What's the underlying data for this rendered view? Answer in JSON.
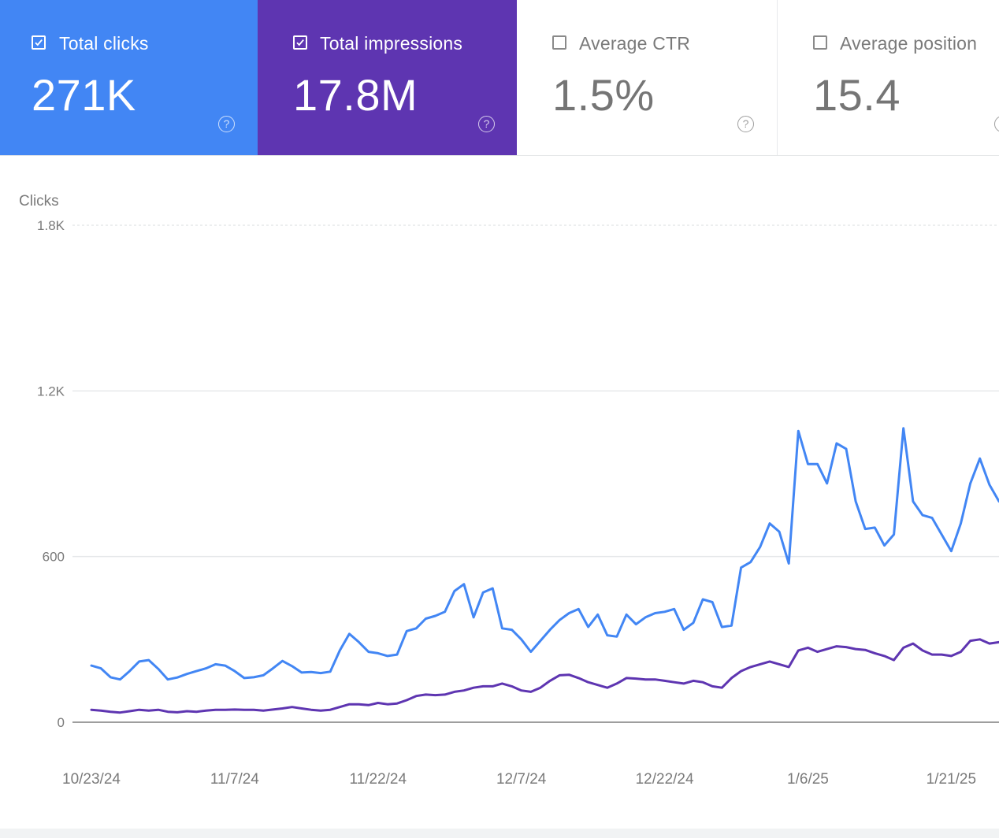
{
  "metrics": [
    {
      "label": "Total clicks",
      "value": "271K",
      "checked": true,
      "color": "#4286f4"
    },
    {
      "label": "Total impressions",
      "value": "17.8M",
      "checked": true,
      "color": "#5e35b1"
    },
    {
      "label": "Average CTR",
      "value": "1.5%",
      "checked": false
    },
    {
      "label": "Average position",
      "value": "15.4",
      "checked": false
    }
  ],
  "help_glyph": "?",
  "chart_data": {
    "type": "line",
    "ylabel": "Clicks",
    "ylim": [
      0,
      1800
    ],
    "yticks": [
      {
        "value": 0,
        "label": "0"
      },
      {
        "value": 600,
        "label": "600"
      },
      {
        "value": 1200,
        "label": "1.2K"
      },
      {
        "value": 1800,
        "label": "1.8K"
      }
    ],
    "x_start": "2024-10-23",
    "x_end": "2025-01-26",
    "xticks": [
      {
        "date": "2024-10-23",
        "label": "10/23/24"
      },
      {
        "date": "2024-11-07",
        "label": "11/7/24"
      },
      {
        "date": "2024-11-22",
        "label": "11/22/24"
      },
      {
        "date": "2024-12-07",
        "label": "12/7/24"
      },
      {
        "date": "2024-12-22",
        "label": "12/22/24"
      },
      {
        "date": "2025-01-06",
        "label": "1/6/25"
      },
      {
        "date": "2025-01-21",
        "label": "1/21/25"
      }
    ],
    "grid": true,
    "series": [
      {
        "color": "#4286f4",
        "points": [
          [
            "2024-10-23",
            205
          ],
          [
            "2024-10-24",
            195
          ],
          [
            "2024-10-25",
            163
          ],
          [
            "2024-10-26",
            155
          ],
          [
            "2024-10-27",
            185
          ],
          [
            "2024-10-28",
            220
          ],
          [
            "2024-10-29",
            225
          ],
          [
            "2024-10-30",
            193
          ],
          [
            "2024-10-31",
            155
          ],
          [
            "2024-11-01",
            162
          ],
          [
            "2024-11-02",
            175
          ],
          [
            "2024-11-03",
            185
          ],
          [
            "2024-11-04",
            195
          ],
          [
            "2024-11-05",
            210
          ],
          [
            "2024-11-06",
            205
          ],
          [
            "2024-11-07",
            185
          ],
          [
            "2024-11-08",
            160
          ],
          [
            "2024-11-09",
            163
          ],
          [
            "2024-11-10",
            170
          ],
          [
            "2024-11-11",
            195
          ],
          [
            "2024-11-12",
            222
          ],
          [
            "2024-11-13",
            203
          ],
          [
            "2024-11-14",
            180
          ],
          [
            "2024-11-15",
            182
          ],
          [
            "2024-11-16",
            178
          ],
          [
            "2024-11-17",
            183
          ],
          [
            "2024-11-18",
            260
          ],
          [
            "2024-11-19",
            320
          ],
          [
            "2024-11-20",
            290
          ],
          [
            "2024-11-21",
            255
          ],
          [
            "2024-11-22",
            250
          ],
          [
            "2024-11-23",
            240
          ],
          [
            "2024-11-24",
            245
          ],
          [
            "2024-11-25",
            330
          ],
          [
            "2024-11-26",
            340
          ],
          [
            "2024-11-27",
            375
          ],
          [
            "2024-11-28",
            385
          ],
          [
            "2024-11-29",
            400
          ],
          [
            "2024-11-30",
            475
          ],
          [
            "2024-12-01",
            500
          ],
          [
            "2024-12-02",
            380
          ],
          [
            "2024-12-03",
            470
          ],
          [
            "2024-12-04",
            485
          ],
          [
            "2024-12-05",
            340
          ],
          [
            "2024-12-06",
            335
          ],
          [
            "2024-12-07",
            300
          ],
          [
            "2024-12-08",
            255
          ],
          [
            "2024-12-09",
            295
          ],
          [
            "2024-12-10",
            335
          ],
          [
            "2024-12-11",
            370
          ],
          [
            "2024-12-12",
            395
          ],
          [
            "2024-12-13",
            410
          ],
          [
            "2024-12-14",
            345
          ],
          [
            "2024-12-15",
            390
          ],
          [
            "2024-12-16",
            315
          ],
          [
            "2024-12-17",
            310
          ],
          [
            "2024-12-18",
            390
          ],
          [
            "2024-12-19",
            355
          ],
          [
            "2024-12-20",
            380
          ],
          [
            "2024-12-21",
            395
          ],
          [
            "2024-12-22",
            400
          ],
          [
            "2024-12-23",
            410
          ],
          [
            "2024-12-24",
            335
          ],
          [
            "2024-12-25",
            360
          ],
          [
            "2024-12-26",
            445
          ],
          [
            "2024-12-27",
            435
          ],
          [
            "2024-12-28",
            345
          ],
          [
            "2024-12-29",
            350
          ],
          [
            "2024-12-30",
            560
          ],
          [
            "2024-12-31",
            580
          ],
          [
            "2025-01-01",
            635
          ],
          [
            "2025-01-02",
            720
          ],
          [
            "2025-01-03",
            690
          ],
          [
            "2025-01-04",
            575
          ],
          [
            "2025-01-05",
            1055
          ],
          [
            "2025-01-06",
            935
          ],
          [
            "2025-01-07",
            935
          ],
          [
            "2025-01-08",
            865
          ],
          [
            "2025-01-09",
            1010
          ],
          [
            "2025-01-10",
            990
          ],
          [
            "2025-01-11",
            800
          ],
          [
            "2025-01-12",
            700
          ],
          [
            "2025-01-13",
            705
          ],
          [
            "2025-01-14",
            640
          ],
          [
            "2025-01-15",
            680
          ],
          [
            "2025-01-16",
            1065
          ],
          [
            "2025-01-17",
            800
          ],
          [
            "2025-01-18",
            750
          ],
          [
            "2025-01-19",
            740
          ],
          [
            "2025-01-20",
            680
          ],
          [
            "2025-01-21",
            620
          ],
          [
            "2025-01-22",
            720
          ],
          [
            "2025-01-23",
            865
          ],
          [
            "2025-01-24",
            955
          ],
          [
            "2025-01-25",
            860
          ],
          [
            "2025-01-26",
            800
          ]
        ]
      },
      {
        "color": "#5e35b1",
        "points": [
          [
            "2024-10-23",
            45
          ],
          [
            "2024-10-24",
            42
          ],
          [
            "2024-10-25",
            38
          ],
          [
            "2024-10-26",
            35
          ],
          [
            "2024-10-27",
            40
          ],
          [
            "2024-10-28",
            45
          ],
          [
            "2024-10-29",
            42
          ],
          [
            "2024-10-30",
            45
          ],
          [
            "2024-10-31",
            38
          ],
          [
            "2024-11-01",
            36
          ],
          [
            "2024-11-02",
            40
          ],
          [
            "2024-11-03",
            38
          ],
          [
            "2024-11-04",
            42
          ],
          [
            "2024-11-05",
            45
          ],
          [
            "2024-11-06",
            45
          ],
          [
            "2024-11-07",
            46
          ],
          [
            "2024-11-08",
            45
          ],
          [
            "2024-11-09",
            45
          ],
          [
            "2024-11-10",
            42
          ],
          [
            "2024-11-11",
            46
          ],
          [
            "2024-11-12",
            50
          ],
          [
            "2024-11-13",
            55
          ],
          [
            "2024-11-14",
            50
          ],
          [
            "2024-11-15",
            45
          ],
          [
            "2024-11-16",
            42
          ],
          [
            "2024-11-17",
            45
          ],
          [
            "2024-11-18",
            55
          ],
          [
            "2024-11-19",
            65
          ],
          [
            "2024-11-20",
            65
          ],
          [
            "2024-11-21",
            62
          ],
          [
            "2024-11-22",
            70
          ],
          [
            "2024-11-23",
            65
          ],
          [
            "2024-11-24",
            68
          ],
          [
            "2024-11-25",
            80
          ],
          [
            "2024-11-26",
            95
          ],
          [
            "2024-11-27",
            100
          ],
          [
            "2024-11-28",
            98
          ],
          [
            "2024-11-29",
            100
          ],
          [
            "2024-11-30",
            110
          ],
          [
            "2024-12-01",
            115
          ],
          [
            "2024-12-02",
            125
          ],
          [
            "2024-12-03",
            130
          ],
          [
            "2024-12-04",
            130
          ],
          [
            "2024-12-05",
            140
          ],
          [
            "2024-12-06",
            130
          ],
          [
            "2024-12-07",
            115
          ],
          [
            "2024-12-08",
            110
          ],
          [
            "2024-12-09",
            125
          ],
          [
            "2024-12-10",
            150
          ],
          [
            "2024-12-11",
            170
          ],
          [
            "2024-12-12",
            172
          ],
          [
            "2024-12-13",
            160
          ],
          [
            "2024-12-14",
            145
          ],
          [
            "2024-12-15",
            135
          ],
          [
            "2024-12-16",
            125
          ],
          [
            "2024-12-17",
            140
          ],
          [
            "2024-12-18",
            160
          ],
          [
            "2024-12-19",
            158
          ],
          [
            "2024-12-20",
            155
          ],
          [
            "2024-12-21",
            155
          ],
          [
            "2024-12-22",
            150
          ],
          [
            "2024-12-23",
            145
          ],
          [
            "2024-12-24",
            140
          ],
          [
            "2024-12-25",
            150
          ],
          [
            "2024-12-26",
            145
          ],
          [
            "2024-12-27",
            130
          ],
          [
            "2024-12-28",
            125
          ],
          [
            "2024-12-29",
            160
          ],
          [
            "2024-12-30",
            185
          ],
          [
            "2024-12-31",
            200
          ],
          [
            "2025-01-01",
            210
          ],
          [
            "2025-01-02",
            220
          ],
          [
            "2025-01-03",
            210
          ],
          [
            "2025-01-04",
            200
          ],
          [
            "2025-01-05",
            260
          ],
          [
            "2025-01-06",
            270
          ],
          [
            "2025-01-07",
            255
          ],
          [
            "2025-01-08",
            265
          ],
          [
            "2025-01-09",
            275
          ],
          [
            "2025-01-10",
            272
          ],
          [
            "2025-01-11",
            265
          ],
          [
            "2025-01-12",
            262
          ],
          [
            "2025-01-13",
            250
          ],
          [
            "2025-01-14",
            240
          ],
          [
            "2025-01-15",
            225
          ],
          [
            "2025-01-16",
            270
          ],
          [
            "2025-01-17",
            285
          ],
          [
            "2025-01-18",
            260
          ],
          [
            "2025-01-19",
            245
          ],
          [
            "2025-01-20",
            245
          ],
          [
            "2025-01-21",
            240
          ],
          [
            "2025-01-22",
            255
          ],
          [
            "2025-01-23",
            295
          ],
          [
            "2025-01-24",
            300
          ],
          [
            "2025-01-25",
            285
          ],
          [
            "2025-01-26",
            290
          ]
        ]
      }
    ]
  }
}
